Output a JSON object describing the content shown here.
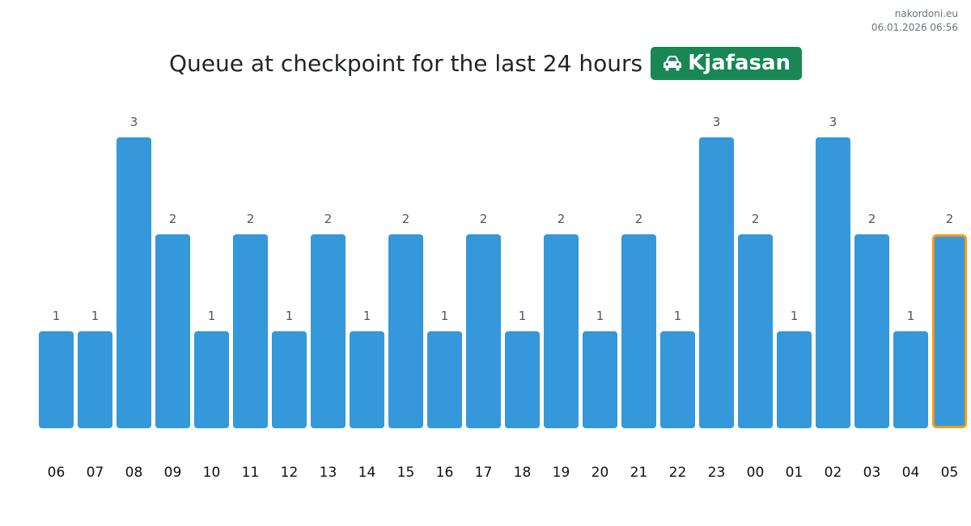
{
  "watermark": {
    "site": "nakordoni.eu",
    "datetime": "06.01.2026 06:56"
  },
  "header": {
    "title": "Queue at checkpoint for the last 24 hours",
    "checkpoint_name": "Kjafasan",
    "checkpoint_icon": "car-icon",
    "badge_color": "#198754"
  },
  "chart_data": {
    "type": "bar",
    "categories": [
      "06",
      "07",
      "08",
      "09",
      "10",
      "11",
      "12",
      "13",
      "14",
      "15",
      "16",
      "17",
      "18",
      "19",
      "20",
      "21",
      "22",
      "23",
      "00",
      "01",
      "02",
      "03",
      "04",
      "05"
    ],
    "values": [
      1,
      1,
      3,
      2,
      1,
      2,
      1,
      2,
      1,
      2,
      1,
      2,
      1,
      2,
      1,
      2,
      1,
      3,
      2,
      1,
      3,
      2,
      1,
      2
    ],
    "title": "Queue at checkpoint for the last 24 hours",
    "xlabel": "",
    "ylabel": "",
    "ylim": [
      0,
      3
    ],
    "grid": false,
    "legend": "none",
    "bar_color": "#3498db",
    "highlight_index": 23,
    "highlight_border_color": "#f39c12"
  }
}
